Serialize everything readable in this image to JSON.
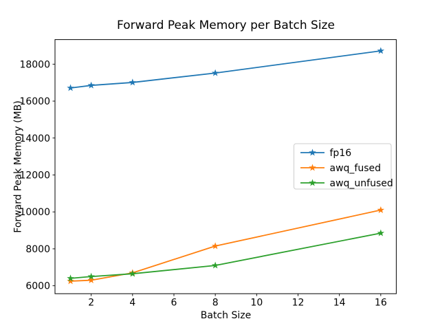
{
  "chart_data": {
    "type": "line",
    "title": "Forward Peak Memory per Batch Size",
    "xlabel": "Batch Size",
    "ylabel": "Forward Peak Memory (MB)",
    "x": [
      1,
      2,
      4,
      8,
      16
    ],
    "series": [
      {
        "name": "fp16",
        "color": "#1f77b4",
        "values": [
          16710,
          16850,
          17010,
          17520,
          18720
        ]
      },
      {
        "name": "awq_fused",
        "color": "#ff7f0e",
        "values": [
          6250,
          6300,
          6700,
          8150,
          10100
        ]
      },
      {
        "name": "awq_unfused",
        "color": "#2ca02c",
        "values": [
          6400,
          6500,
          6650,
          7100,
          8850
        ]
      }
    ],
    "marker": "star",
    "xticks": [
      2,
      4,
      6,
      8,
      10,
      12,
      14,
      16
    ],
    "yticks": [
      6000,
      8000,
      10000,
      12000,
      14000,
      16000,
      18000
    ],
    "xlim": [
      0.25,
      16.75
    ],
    "ylim": [
      5570,
      19330
    ],
    "grid": false,
    "legend": {
      "position": "center-right",
      "entries": [
        "fp16",
        "awq_fused",
        "awq_unfused"
      ]
    },
    "spine_color": "#000000",
    "background": "#ffffff"
  }
}
